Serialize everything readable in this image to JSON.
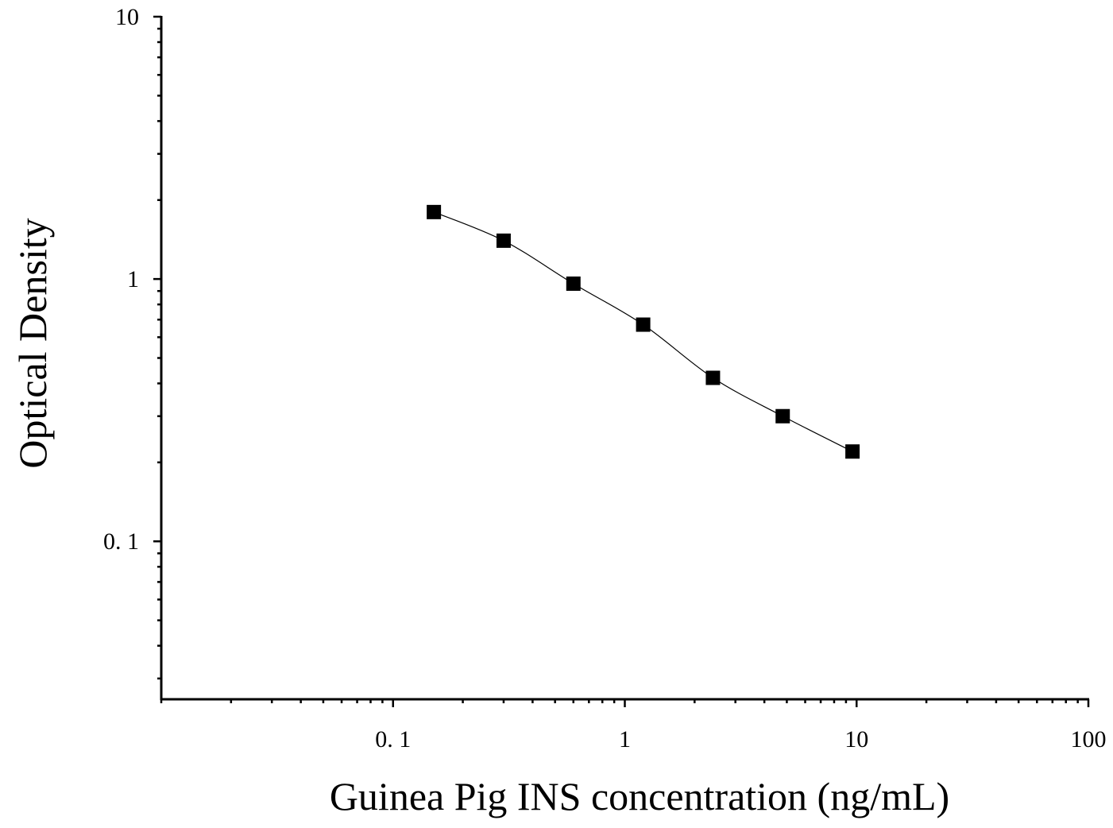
{
  "chart_data": {
    "type": "scatter",
    "title": "",
    "xlabel": "Guinea Pig INS concentration (ng/mL)",
    "ylabel": "Optical Density",
    "x_scale": "log",
    "y_scale": "log",
    "xlim": [
      0.01,
      100
    ],
    "ylim": [
      0.025,
      10
    ],
    "x_ticks": [
      {
        "value": 0.1,
        "label": "0. 1"
      },
      {
        "value": 1,
        "label": "1"
      },
      {
        "value": 10,
        "label": "10"
      },
      {
        "value": 100,
        "label": "100"
      }
    ],
    "y_ticks": [
      {
        "value": 0.1,
        "label": "0. 1"
      },
      {
        "value": 1,
        "label": "1"
      },
      {
        "value": 10,
        "label": "10"
      }
    ],
    "grid": false,
    "legend": "none",
    "marker": "square",
    "marker_color": "#000000",
    "line_color": "#000000",
    "fit_curve": true,
    "series": [
      {
        "x": [
          0.15,
          0.3,
          0.6,
          1.2,
          2.4,
          4.8,
          9.6
        ],
        "y": [
          1.8,
          1.4,
          0.96,
          0.67,
          0.42,
          0.3,
          0.22
        ]
      }
    ]
  }
}
